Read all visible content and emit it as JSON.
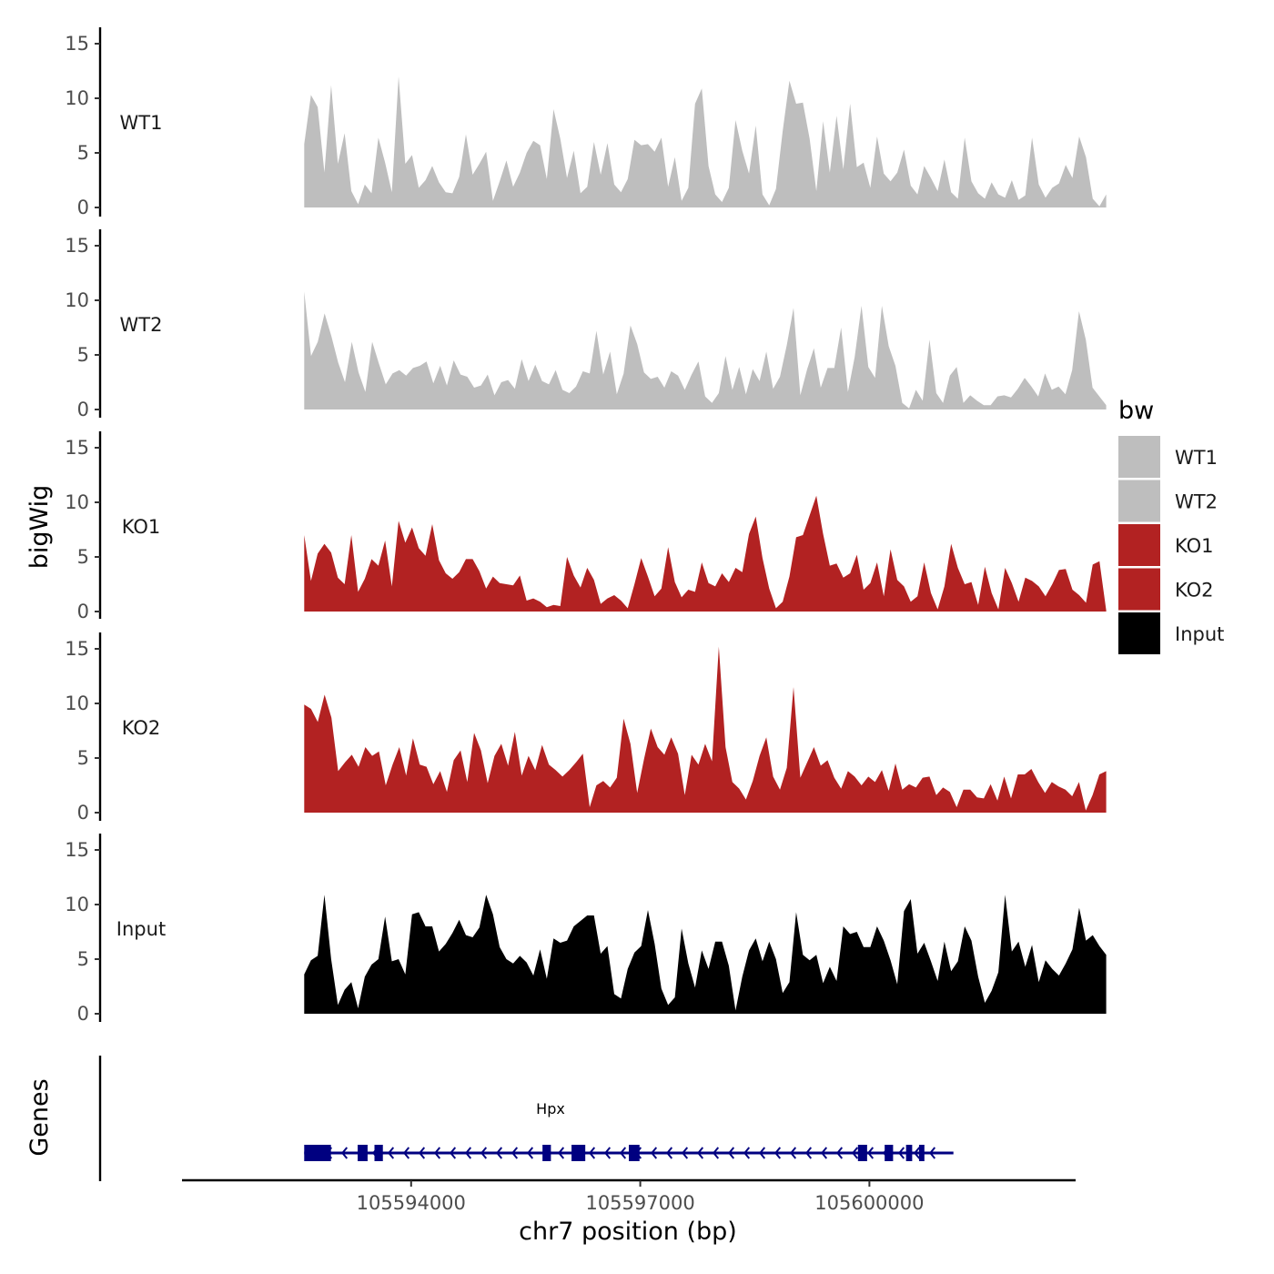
{
  "chart_data": {
    "type": "area",
    "chromosome": "chr7",
    "xlabel": "chr7 position (bp)",
    "ylabel": "bigWig",
    "genes_label": "Genes",
    "xlim": [
      105591000,
      105602700
    ],
    "ylim": [
      0,
      16
    ],
    "x_ticks": [
      105594000,
      105597000,
      105600000
    ],
    "x_tick_labels": [
      "105594000",
      "105597000",
      "105600000"
    ],
    "y_ticks": [
      0,
      5,
      10,
      15
    ],
    "y_tick_labels": [
      "0",
      "5",
      "10",
      "15"
    ],
    "legend": {
      "title": "bw",
      "items": [
        {
          "label": "WT1",
          "color": "#bebebe"
        },
        {
          "label": "WT2",
          "color": "#bebebe"
        },
        {
          "label": "KO1",
          "color": "#b22222"
        },
        {
          "label": "KO2",
          "color": "#b22222"
        },
        {
          "label": "Input",
          "color": "#000000"
        }
      ]
    },
    "x_start": 105592600,
    "x_end": 105603100,
    "series": [
      {
        "name": "WT1",
        "color": "#bebebe",
        "values": [
          5.8,
          10.3,
          9.2,
          3.2,
          11.2,
          4.0,
          6.8,
          1.5,
          0.3,
          2.1,
          1.3,
          6.4,
          4.1,
          1.4,
          12.0,
          4.0,
          4.8,
          1.8,
          2.5,
          3.8,
          2.3,
          1.4,
          1.3,
          2.8,
          6.7,
          3.0,
          4.0,
          5.1,
          0.6,
          2.4,
          4.3,
          1.9,
          3.2,
          5.0,
          6.1,
          5.7,
          2.6,
          9.0,
          6.3,
          2.7,
          5.2,
          1.3,
          1.9,
          6.0,
          3.0,
          5.9,
          2.1,
          1.4,
          2.6,
          6.2,
          5.7,
          5.8,
          5.1,
          6.4,
          1.9,
          4.6,
          0.6,
          1.8,
          9.5,
          10.9,
          3.8,
          1.2,
          0.5,
          1.8,
          8.0,
          5.2,
          3.1,
          7.5,
          1.2,
          0.2,
          1.7,
          7.0,
          11.6,
          9.5,
          9.6,
          6.3,
          1.5,
          7.9,
          3.2,
          8.4,
          3.5,
          9.5,
          3.7,
          4.1,
          1.8,
          6.5,
          3.1,
          2.4,
          3.2,
          5.3,
          2.0,
          1.2,
          3.8,
          2.7,
          1.5,
          4.4,
          1.4,
          0.8,
          6.4,
          2.4,
          1.3,
          0.8,
          2.3,
          1.2,
          0.9,
          2.5,
          0.7,
          1.1,
          6.4,
          2.1,
          0.9,
          1.8,
          2.2,
          3.9,
          2.7,
          6.5,
          4.6,
          0.8,
          0.1,
          1.2
        ]
      },
      {
        "name": "WT2",
        "color": "#bebebe",
        "values": [
          10.8,
          4.9,
          6.2,
          8.8,
          6.7,
          4.3,
          2.5,
          6.2,
          3.4,
          1.6,
          6.2,
          4.2,
          2.3,
          3.3,
          3.6,
          3.1,
          3.8,
          4.0,
          4.4,
          2.4,
          4.0,
          2.2,
          4.5,
          3.2,
          3.0,
          2.0,
          2.2,
          3.2,
          1.3,
          2.5,
          2.7,
          1.9,
          4.6,
          2.6,
          4.1,
          2.6,
          2.3,
          3.6,
          1.8,
          1.5,
          2.1,
          3.5,
          3.3,
          7.2,
          3.2,
          5.3,
          1.4,
          3.3,
          7.7,
          6.0,
          3.4,
          2.8,
          3.0,
          2.0,
          3.5,
          3.1,
          1.8,
          3.2,
          4.4,
          1.2,
          0.6,
          1.5,
          4.9,
          1.8,
          3.9,
          1.4,
          3.7,
          2.6,
          5.3,
          1.9,
          3.0,
          5.9,
          9.3,
          1.3,
          3.7,
          5.6,
          2.0,
          3.8,
          3.8,
          7.5,
          1.6,
          4.8,
          9.5,
          3.9,
          2.9,
          9.5,
          5.8,
          4.0,
          0.6,
          0.1,
          1.8,
          0.8,
          6.4,
          1.5,
          0.6,
          3.1,
          3.9,
          0.6,
          1.3,
          0.8,
          0.4,
          0.4,
          1.2,
          1.3,
          1.1,
          1.9,
          2.9,
          2.1,
          1.2,
          3.3,
          1.8,
          2.1,
          1.4,
          3.6,
          9.0,
          6.4,
          2.0,
          1.2,
          0.4
        ]
      },
      {
        "name": "KO1",
        "color": "#b22222",
        "values": [
          7.0,
          2.8,
          5.3,
          6.2,
          5.4,
          3.1,
          2.5,
          7.0,
          1.8,
          3.0,
          4.8,
          4.2,
          6.5,
          2.3,
          8.3,
          6.3,
          7.7,
          5.8,
          5.1,
          8.0,
          4.7,
          3.5,
          3.0,
          3.6,
          4.8,
          4.8,
          3.7,
          2.1,
          3.2,
          2.6,
          2.5,
          2.4,
          3.3,
          1.0,
          1.2,
          0.9,
          0.4,
          0.6,
          0.5,
          5.0,
          3.3,
          2.2,
          4.0,
          2.9,
          0.7,
          1.2,
          1.5,
          1.0,
          0.3,
          2.5,
          4.9,
          3.2,
          1.4,
          2.1,
          5.9,
          2.7,
          1.3,
          2.0,
          1.8,
          4.5,
          2.6,
          2.3,
          3.5,
          2.7,
          4.0,
          3.6,
          7.1,
          8.7,
          4.9,
          2.1,
          0.3,
          0.9,
          3.2,
          6.8,
          7.0,
          8.8,
          10.6,
          7.1,
          4.2,
          4.4,
          3.1,
          3.5,
          5.2,
          2.0,
          2.6,
          4.5,
          1.4,
          5.7,
          2.9,
          2.3,
          0.9,
          1.4,
          4.5,
          1.7,
          0.2,
          2.3,
          6.2,
          4.0,
          2.5,
          2.7,
          0.6,
          4.1,
          1.7,
          0.2,
          4.0,
          2.6,
          0.9,
          3.1,
          2.8,
          2.3,
          1.4,
          2.5,
          3.8,
          3.9,
          2.0,
          1.5,
          0.8,
          4.3,
          4.6,
          0.1
        ]
      },
      {
        "name": "KO2",
        "color": "#b22222",
        "values": [
          9.9,
          9.5,
          8.3,
          10.8,
          8.7,
          3.8,
          4.6,
          5.3,
          4.2,
          6.0,
          5.2,
          5.6,
          2.5,
          4.4,
          6.0,
          3.4,
          6.8,
          4.4,
          4.2,
          2.6,
          3.8,
          1.9,
          4.8,
          5.7,
          2.8,
          7.3,
          5.7,
          2.7,
          5.2,
          6.3,
          4.3,
          7.4,
          3.4,
          5.2,
          3.9,
          6.2,
          4.4,
          3.9,
          3.3,
          3.9,
          4.6,
          5.4,
          0.5,
          2.5,
          2.9,
          2.3,
          3.2,
          8.6,
          6.3,
          1.8,
          4.9,
          7.7,
          6.0,
          5.3,
          6.9,
          5.4,
          1.6,
          5.3,
          4.4,
          6.3,
          4.7,
          15.2,
          6.0,
          2.8,
          2.2,
          1.2,
          2.9,
          5.2,
          6.9,
          3.3,
          2.1,
          4.1,
          11.5,
          3.2,
          4.6,
          6.0,
          4.3,
          4.8,
          3.2,
          2.2,
          3.8,
          3.3,
          2.5,
          3.3,
          2.8,
          3.9,
          2.0,
          4.5,
          2.1,
          2.6,
          2.3,
          3.2,
          3.3,
          1.6,
          2.3,
          1.9,
          0.5,
          2.1,
          2.1,
          1.4,
          1.3,
          2.6,
          1.1,
          3.3,
          1.3,
          3.5,
          3.5,
          4.0,
          2.8,
          1.8,
          2.8,
          2.4,
          2.1,
          1.5,
          2.8,
          0.2,
          1.6,
          3.5,
          3.8
        ]
      },
      {
        "name": "Input",
        "color": "#000000",
        "values": [
          3.6,
          4.9,
          5.3,
          10.9,
          5.0,
          0.8,
          2.2,
          2.9,
          0.5,
          3.4,
          4.5,
          5.0,
          8.9,
          4.8,
          5.0,
          3.6,
          9.1,
          9.3,
          8.0,
          8.0,
          5.7,
          6.4,
          7.4,
          8.6,
          7.2,
          7.0,
          7.9,
          10.9,
          9.1,
          6.1,
          5.0,
          4.6,
          5.3,
          4.7,
          3.5,
          5.9,
          3.2,
          6.9,
          6.5,
          6.7,
          8.0,
          8.5,
          9.0,
          9.0,
          5.5,
          6.2,
          1.8,
          1.4,
          4.1,
          5.6,
          6.2,
          9.5,
          6.4,
          2.3,
          0.8,
          1.5,
          7.8,
          4.6,
          2.4,
          5.8,
          4.1,
          6.6,
          6.6,
          4.4,
          0.3,
          3.4,
          5.8,
          6.9,
          4.8,
          6.6,
          5.0,
          1.9,
          2.9,
          9.3,
          5.4,
          4.9,
          5.4,
          2.8,
          4.3,
          3.0,
          8.0,
          7.3,
          7.5,
          6.1,
          6.1,
          8.0,
          6.7,
          4.9,
          2.7,
          9.4,
          10.5,
          5.5,
          6.5,
          4.8,
          3.0,
          6.6,
          3.9,
          4.8,
          8.0,
          6.7,
          3.4,
          1.0,
          2.1,
          3.8,
          10.9,
          5.7,
          6.6,
          4.3,
          6.3,
          2.9,
          4.9,
          4.1,
          3.5,
          4.6,
          5.9,
          9.7,
          6.7,
          7.2,
          6.2,
          5.4
        ]
      }
    ],
    "genes": [
      {
        "name": "Hpx",
        "strand": "-",
        "start": 105592600,
        "end": 105601100,
        "color": "#000080",
        "exons": [
          [
            105592600,
            105592950
          ],
          [
            105593300,
            105593430
          ],
          [
            105593520,
            105593630
          ],
          [
            105595720,
            105595830
          ],
          [
            105596100,
            105596280
          ],
          [
            105596850,
            105596990
          ],
          [
            105599850,
            105599970
          ],
          [
            105600200,
            105600310
          ],
          [
            105600480,
            105600560
          ],
          [
            105600650,
            105600720
          ]
        ]
      }
    ]
  }
}
